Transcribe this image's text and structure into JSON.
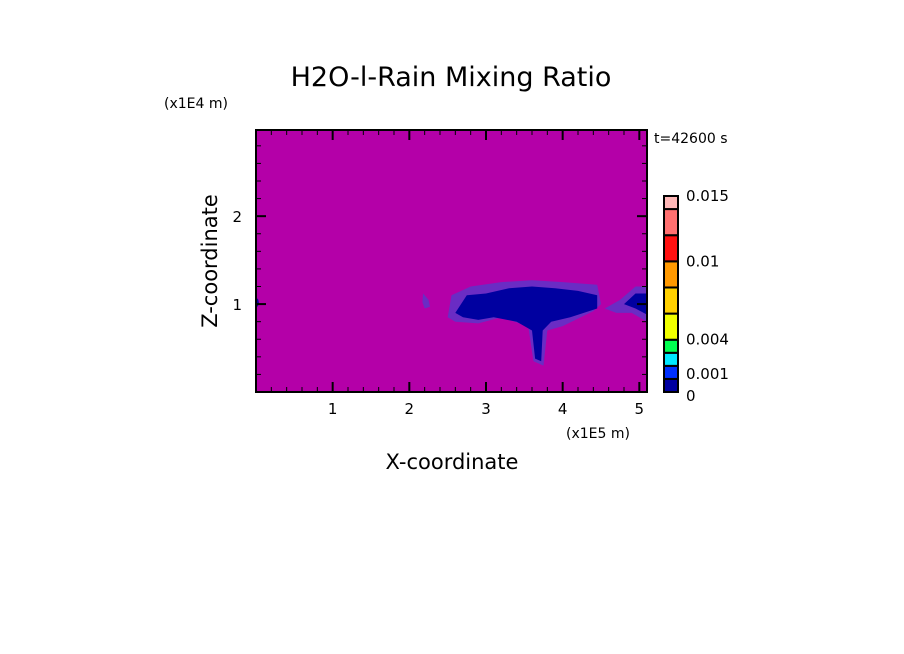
{
  "chart_data": {
    "type": "heatmap",
    "title": "H2O-l-Rain Mixing Ratio",
    "xlabel": "X-coordinate",
    "ylabel": "Z-coordinate",
    "x_unit": "(x1E5 m)",
    "y_unit": "(x1E4 m)",
    "time_label": "t=42600 s",
    "xlim": [
      0,
      5.1
    ],
    "ylim": [
      0,
      2.98
    ],
    "x_ticks": [
      1,
      2,
      3,
      4,
      5
    ],
    "x_tick_labels": [
      "1",
      "2",
      "3",
      "4",
      "5"
    ],
    "y_ticks": [
      1,
      2
    ],
    "y_tick_labels": [
      "1",
      "2"
    ],
    "minor_tick_step": 0.2,
    "background_color": "#b400a8",
    "fringe_color": "#6a2cc4",
    "colorbar": {
      "levels": [
        0,
        0.001,
        0.002,
        0.003,
        0.004,
        0.006,
        0.008,
        0.01,
        0.012,
        0.014,
        0.015
      ],
      "colors": [
        "#0000a0",
        "#0030ff",
        "#00e8ff",
        "#00ff50",
        "#f0ff00",
        "#ffd000",
        "#ff9900",
        "#ff1010",
        "#ff7070",
        "#ffb8b8"
      ],
      "labeled_levels": [
        0,
        0.001,
        0.004,
        0.01,
        0.015
      ],
      "labels": [
        "0",
        "0.001",
        "0.004",
        "0.01",
        "0.015"
      ]
    },
    "rain_regions": [
      {
        "level": "fringe",
        "points": [
          [
            2.5,
            0.85
          ],
          [
            2.55,
            1.1
          ],
          [
            2.8,
            1.2
          ],
          [
            3.2,
            1.25
          ],
          [
            3.6,
            1.27
          ],
          [
            4.0,
            1.25
          ],
          [
            4.45,
            1.22
          ],
          [
            4.5,
            1.0
          ],
          [
            4.4,
            0.92
          ],
          [
            4.0,
            0.75
          ],
          [
            3.8,
            0.7
          ],
          [
            3.75,
            0.3
          ],
          [
            3.62,
            0.35
          ],
          [
            3.55,
            0.75
          ],
          [
            3.2,
            0.85
          ],
          [
            2.9,
            0.78
          ],
          [
            2.6,
            0.8
          ]
        ]
      },
      {
        "level": "core",
        "points": [
          [
            2.6,
            0.9
          ],
          [
            2.75,
            1.1
          ],
          [
            3.0,
            1.12
          ],
          [
            3.3,
            1.18
          ],
          [
            3.6,
            1.2
          ],
          [
            3.9,
            1.18
          ],
          [
            4.2,
            1.15
          ],
          [
            4.45,
            1.1
          ],
          [
            4.45,
            0.95
          ],
          [
            4.1,
            0.85
          ],
          [
            3.85,
            0.8
          ],
          [
            3.74,
            0.7
          ],
          [
            3.72,
            0.35
          ],
          [
            3.64,
            0.38
          ],
          [
            3.6,
            0.7
          ],
          [
            3.4,
            0.8
          ],
          [
            3.1,
            0.85
          ],
          [
            2.9,
            0.82
          ],
          [
            2.7,
            0.85
          ]
        ]
      },
      {
        "level": "fringe",
        "points": [
          [
            4.55,
            0.95
          ],
          [
            4.75,
            1.05
          ],
          [
            4.95,
            1.2
          ],
          [
            5.1,
            1.2
          ],
          [
            5.1,
            0.8
          ],
          [
            4.9,
            0.9
          ],
          [
            4.7,
            0.9
          ]
        ]
      },
      {
        "level": "core",
        "points": [
          [
            4.8,
            1.0
          ],
          [
            4.95,
            1.12
          ],
          [
            5.1,
            1.12
          ],
          [
            5.1,
            0.88
          ],
          [
            4.95,
            0.95
          ]
        ]
      },
      {
        "level": "fringe",
        "points": [
          [
            2.18,
            1.12
          ],
          [
            2.25,
            1.05
          ],
          [
            2.27,
            0.97
          ],
          [
            2.2,
            0.95
          ],
          [
            2.17,
            1.02
          ]
        ]
      },
      {
        "level": "core",
        "points": [
          [
            0,
            0.95
          ],
          [
            0.04,
            1.0
          ],
          [
            0.03,
            1.05
          ],
          [
            0,
            1.08
          ]
        ]
      }
    ]
  }
}
